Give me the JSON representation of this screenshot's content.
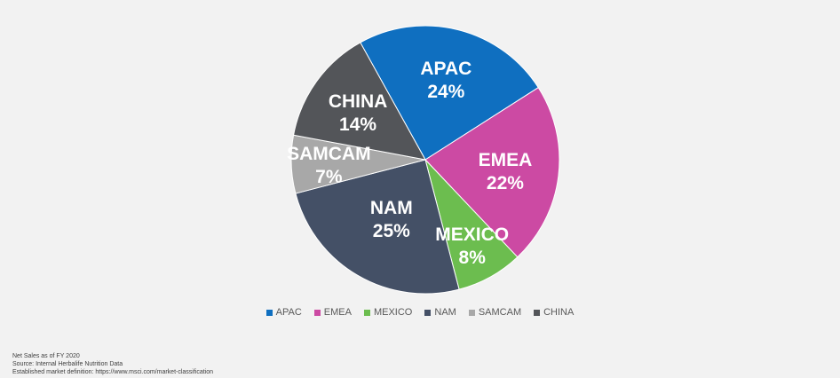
{
  "chart_data": {
    "type": "pie",
    "title": "",
    "slices": [
      {
        "label": "APAC",
        "value": 24,
        "display": "24%",
        "color": "#0f6fc0"
      },
      {
        "label": "EMEA",
        "value": 22,
        "display": "22%",
        "color": "#cc4aa3"
      },
      {
        "label": "MEXICO",
        "value": 8,
        "display": "8%",
        "color": "#6cbd4f"
      },
      {
        "label": "NAM",
        "value": 25,
        "display": "25%",
        "color": "#445066"
      },
      {
        "label": "SAMCAM",
        "value": 7,
        "display": "7%",
        "color": "#a8a8a8"
      },
      {
        "label": "CHINA",
        "value": 14,
        "display": "14%",
        "color": "#535559"
      }
    ],
    "legend_placement": "bottom"
  },
  "legend": {
    "items": [
      "APAC",
      "EMEA",
      "MEXICO",
      "NAM",
      "SAMCAM",
      "CHINA"
    ]
  },
  "footnote": {
    "line1": "Net Sales as of FY 2020",
    "line2": "Source: Internal Herbalife Nutrition Data",
    "line3": "Established market definition: https://www.msci.com/market-classification"
  }
}
